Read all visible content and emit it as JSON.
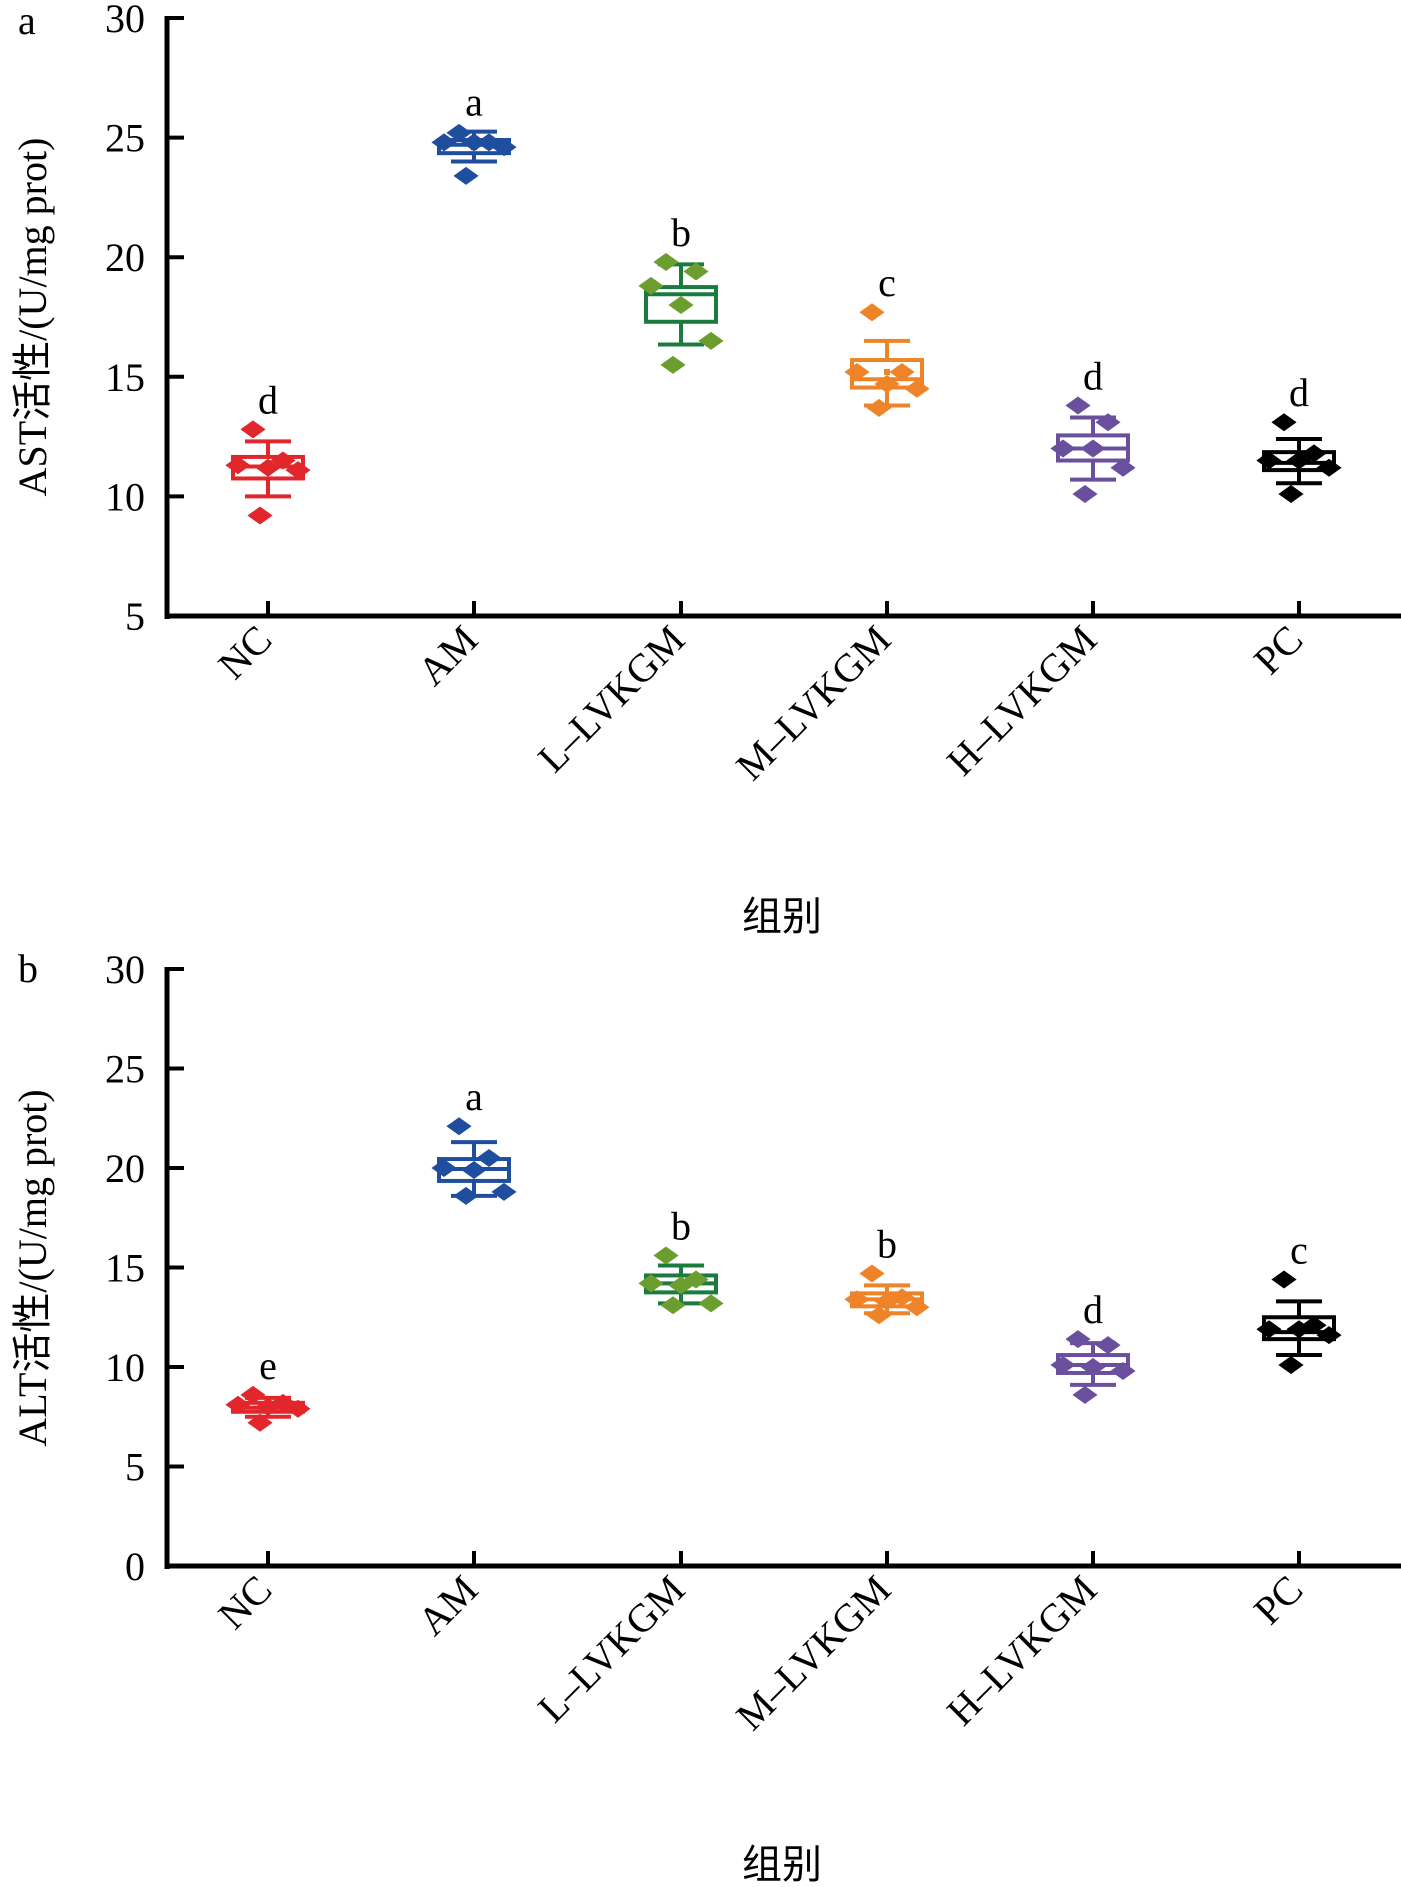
{
  "chart_data": [
    {
      "panel": "a",
      "type": "box",
      "title": "",
      "xlabel": "组别",
      "ylabel": "AST活性/(U/mg prot)",
      "ylim": [
        5,
        30
      ],
      "yticks": [
        5,
        10,
        15,
        20,
        25,
        30
      ],
      "grid": false,
      "legend": "none",
      "categories": [
        "NC",
        "AM",
        "L-LVKGM",
        "M-LVKGM",
        "H-LVKGM",
        "PC"
      ],
      "groups": [
        {
          "name": "NC",
          "color": "#e1272c",
          "point_color": "#e1272c",
          "letter": "d",
          "points": [
            12.8,
            11.5,
            11.3,
            11.2,
            11.1,
            9.2
          ],
          "q1": 10.75,
          "median": 11.25,
          "q3": 11.65,
          "whisker_low": 10.0,
          "whisker_high": 12.3,
          "mean": 11.2
        },
        {
          "name": "AM",
          "color": "#1f4e9e",
          "point_color": "#1f4e9e",
          "letter": "a",
          "points": [
            25.2,
            24.8,
            24.8,
            24.8,
            24.6,
            23.4
          ],
          "q1": 24.35,
          "median": 24.7,
          "q3": 24.9,
          "whisker_low": 24.0,
          "whisker_high": 25.25,
          "mean": 24.6
        },
        {
          "name": "L-LVKGM",
          "color": "#1b7a3e",
          "point_color": "#6b9e2f",
          "letter": "b",
          "points": [
            19.8,
            19.4,
            18.8,
            18.0,
            16.5,
            15.5
          ],
          "q1": 17.3,
          "median": 18.45,
          "q3": 18.75,
          "whisker_low": 16.35,
          "whisker_high": 19.7,
          "mean": 18.0
        },
        {
          "name": "M-LVKGM",
          "color": "#ee8427",
          "point_color": "#ee8427",
          "letter": "c",
          "points": [
            17.7,
            15.2,
            15.2,
            14.7,
            14.5,
            13.7
          ],
          "q1": 14.55,
          "median": 14.9,
          "q3": 15.7,
          "whisker_low": 13.8,
          "whisker_high": 16.5,
          "mean": 15.2
        },
        {
          "name": "H-LVKGM",
          "color": "#6a4f9f",
          "point_color": "#6a4f9f",
          "letter": "d",
          "points": [
            13.8,
            13.1,
            12.0,
            12.0,
            11.2,
            10.1
          ],
          "q1": 11.5,
          "median": 12.0,
          "q3": 12.55,
          "whisker_low": 10.7,
          "whisker_high": 13.3,
          "mean": 12.05
        },
        {
          "name": "PC",
          "color": "#000000",
          "point_color": "#000000",
          "letter": "d",
          "points": [
            13.1,
            11.8,
            11.5,
            11.5,
            11.2,
            10.1
          ],
          "q1": 11.1,
          "median": 11.4,
          "q3": 11.85,
          "whisker_low": 10.55,
          "whisker_high": 12.4,
          "mean": 11.5
        }
      ]
    },
    {
      "panel": "b",
      "type": "box",
      "title": "",
      "xlabel": "组别",
      "ylabel": "ALT活性/(U/mg prot)",
      "ylim": [
        0,
        30
      ],
      "yticks": [
        0,
        5,
        10,
        15,
        20,
        25,
        30
      ],
      "grid": false,
      "legend": "none",
      "categories": [
        "NC",
        "AM",
        "L-LVKGM",
        "M-LVKGM",
        "H-LVKGM",
        "PC"
      ],
      "groups": [
        {
          "name": "NC",
          "color": "#e1272c",
          "point_color": "#e1272c",
          "letter": "e",
          "points": [
            8.6,
            8.2,
            8.1,
            8.0,
            7.9,
            7.2
          ],
          "q1": 7.75,
          "median": 7.95,
          "q3": 8.2,
          "whisker_low": 7.5,
          "whisker_high": 8.45,
          "mean": 8.0
        },
        {
          "name": "AM",
          "color": "#1f4e9e",
          "point_color": "#1f4e9e",
          "letter": "a",
          "points": [
            22.1,
            20.5,
            20.0,
            19.9,
            18.8,
            18.6
          ],
          "q1": 19.35,
          "median": 19.95,
          "q3": 20.45,
          "whisker_low": 18.6,
          "whisker_high": 21.3,
          "mean": 20.0
        },
        {
          "name": "L-LVKGM",
          "color": "#1b7a3e",
          "point_color": "#6b9e2f",
          "letter": "b",
          "points": [
            15.6,
            14.4,
            14.2,
            14.1,
            13.2,
            13.1
          ],
          "q1": 13.75,
          "median": 14.2,
          "q3": 14.6,
          "whisker_low": 13.2,
          "whisker_high": 15.1,
          "mean": 14.1
        },
        {
          "name": "M-LVKGM",
          "color": "#ee8427",
          "point_color": "#ee8427",
          "letter": "b",
          "points": [
            14.7,
            13.5,
            13.4,
            13.3,
            13.0,
            12.6
          ],
          "q1": 13.05,
          "median": 13.4,
          "q3": 13.7,
          "whisker_low": 12.7,
          "whisker_high": 14.1,
          "mean": 13.4
        },
        {
          "name": "H-LVKGM",
          "color": "#6a4f9f",
          "point_color": "#6a4f9f",
          "letter": "d",
          "points": [
            11.4,
            11.1,
            10.1,
            10.0,
            9.8,
            8.6
          ],
          "q1": 9.7,
          "median": 10.1,
          "q3": 10.6,
          "whisker_low": 9.1,
          "whisker_high": 11.2,
          "mean": 10.15
        },
        {
          "name": "PC",
          "color": "#000000",
          "point_color": "#000000",
          "letter": "c",
          "points": [
            14.4,
            12.1,
            11.9,
            11.9,
            11.6,
            10.1
          ],
          "q1": 11.4,
          "median": 11.75,
          "q3": 12.5,
          "whisker_low": 10.6,
          "whisker_high": 13.3,
          "mean": 12.0
        }
      ]
    }
  ]
}
